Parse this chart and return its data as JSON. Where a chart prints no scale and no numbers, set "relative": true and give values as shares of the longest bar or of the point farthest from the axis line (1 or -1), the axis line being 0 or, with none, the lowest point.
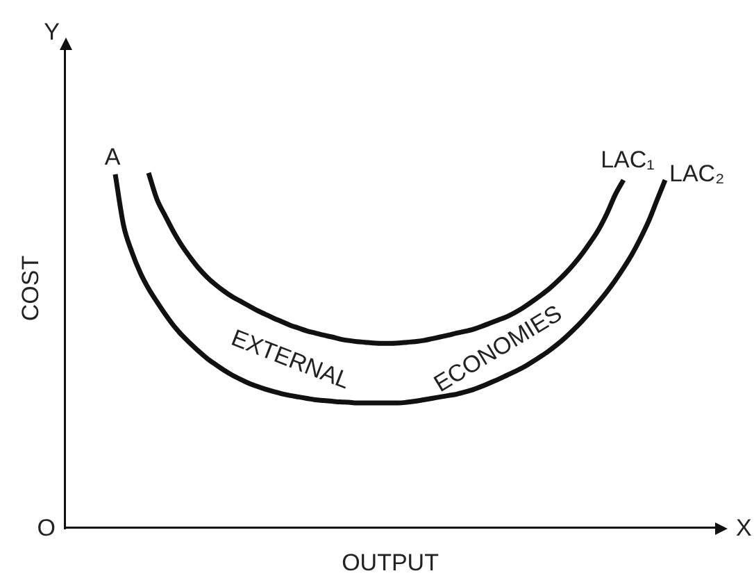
{
  "chart_data": {
    "type": "line",
    "relative": true,
    "xlabel": "OUTPUT",
    "ylabel": "COST",
    "grid": false,
    "legend": false,
    "marker": "none",
    "categories": [
      null,
      null,
      null,
      null,
      null,
      null,
      null,
      null,
      null,
      null,
      null,
      null,
      null,
      null,
      null,
      null,
      null,
      null,
      null,
      null,
      null,
      null,
      null,
      null,
      null,
      null,
      null,
      null,
      null,
      null,
      null,
      null,
      null,
      null,
      null,
      null,
      null,
      null,
      null,
      null,
      null,
      null,
      null,
      null,
      null,
      null,
      null,
      null,
      null,
      null,
      null,
      null,
      null,
      null,
      null,
      null,
      null,
      null,
      null,
      null,
      null,
      null,
      null,
      null,
      null,
      null,
      null,
      null,
      null,
      null,
      null,
      null,
      null,
      null,
      null,
      null,
      null,
      null,
      null
    ],
    "series": [
      {
        "name": "LAC₁",
        "color": "#111111",
        "values": [
          null,
          null,
          null,
          null,
          null,
          null,
          null,
          null,
          null,
          null,
          1.0,
          0.926,
          0.879,
          0.834,
          0.795,
          0.762,
          0.732,
          0.707,
          0.686,
          0.668,
          0.652,
          0.639,
          0.626,
          0.613,
          0.602,
          0.591,
          0.581,
          0.571,
          0.563,
          0.555,
          0.549,
          0.543,
          0.538,
          0.532,
          0.528,
          0.525,
          0.523,
          0.521,
          0.52,
          0.52,
          0.521,
          0.523,
          0.525,
          0.528,
          0.533,
          0.538,
          0.543,
          0.549,
          0.554,
          0.56,
          0.568,
          0.577,
          0.586,
          0.595,
          0.607,
          0.621,
          0.637,
          0.654,
          0.672,
          0.693,
          0.716,
          0.742,
          0.771,
          0.804,
          0.84,
          0.885,
          0.938,
          0.98,
          null,
          null,
          null,
          null,
          null,
          null,
          null,
          null,
          null,
          null,
          null
        ]
      },
      {
        "name": "LAC₂",
        "color": "#111111",
        "values": [
          null,
          null,
          null,
          null,
          null,
          null,
          0.996,
          0.852,
          0.777,
          0.719,
          0.674,
          0.637,
          0.602,
          0.57,
          0.543,
          0.52,
          0.498,
          0.478,
          0.461,
          0.445,
          0.431,
          0.419,
          0.408,
          0.399,
          0.391,
          0.384,
          0.378,
          0.373,
          0.369,
          0.365,
          0.361,
          0.359,
          0.357,
          0.355,
          0.354,
          0.352,
          0.352,
          0.352,
          0.352,
          0.352,
          0.352,
          0.354,
          0.357,
          0.361,
          0.365,
          0.369,
          0.373,
          0.377,
          0.383,
          0.39,
          0.399,
          0.409,
          0.419,
          0.43,
          0.441,
          0.453,
          0.467,
          0.482,
          0.498,
          0.516,
          0.536,
          0.558,
          0.582,
          0.608,
          0.636,
          0.665,
          0.697,
          0.732,
          0.77,
          0.814,
          0.863,
          0.922,
          0.98,
          null,
          null,
          null,
          null,
          null,
          null
        ]
      }
    ],
    "annotations": [
      "A",
      "EXTERNAL",
      "ECONOMIES",
      "O",
      "X",
      "Y"
    ]
  }
}
